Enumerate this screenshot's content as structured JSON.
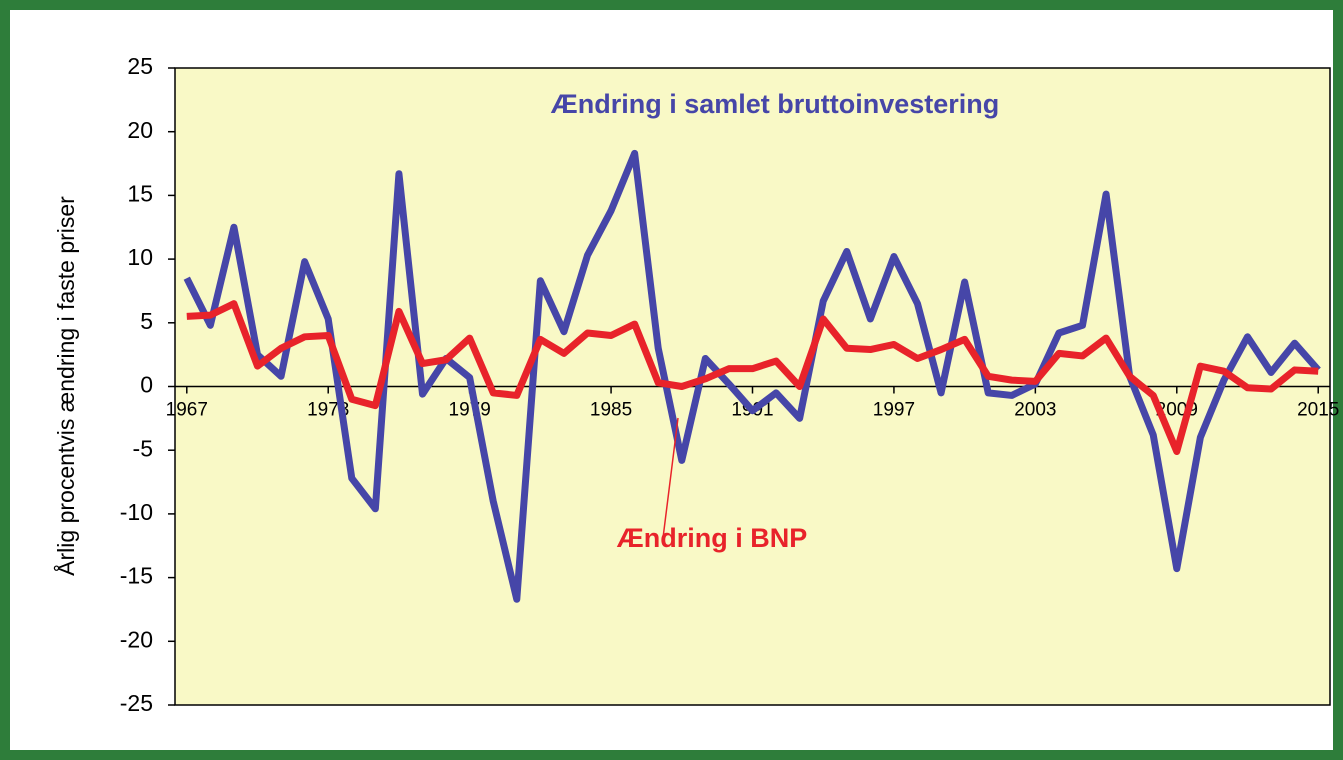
{
  "chart_data": {
    "type": "line",
    "y_label": "Årlig procentvis ændring i faste priser",
    "x": [
      1967,
      1968,
      1969,
      1970,
      1971,
      1972,
      1973,
      1974,
      1975,
      1976,
      1977,
      1978,
      1979,
      1980,
      1981,
      1982,
      1983,
      1984,
      1985,
      1986,
      1987,
      1988,
      1989,
      1990,
      1991,
      1992,
      1993,
      1994,
      1995,
      1996,
      1997,
      1998,
      1999,
      2000,
      2001,
      2002,
      2003,
      2004,
      2005,
      2006,
      2007,
      2008,
      2009,
      2010,
      2011,
      2012,
      2013,
      2014,
      2015
    ],
    "series": [
      {
        "name": "Ændring i samlet bruttoinvestering",
        "color": "#4646a8",
        "values": [
          8.5,
          4.8,
          12.5,
          2.5,
          0.8,
          9.8,
          5.3,
          -7.2,
          -9.6,
          16.7,
          -0.6,
          2.2,
          0.7,
          -9,
          -16.7,
          8.3,
          4.3,
          10.3,
          13.8,
          18.3,
          3,
          -5.8,
          2.2,
          0.2,
          -1.9,
          -0.5,
          -2.5,
          6.7,
          10.6,
          5.3,
          10.2,
          6.5,
          -0.5,
          8.2,
          -0.5,
          -0.7,
          0.2,
          4.2,
          4.8,
          15.1,
          0.8,
          -3.8,
          -14.3,
          -4,
          0.5,
          3.9,
          1.1,
          3.4,
          1.3
        ]
      },
      {
        "name": "Ændring i BNP",
        "color": "#e8232a",
        "values": [
          5.5,
          5.6,
          6.5,
          1.6,
          3,
          3.9,
          4,
          -1,
          -1.5,
          5.9,
          1.8,
          2.1,
          3.8,
          -0.5,
          -0.7,
          3.7,
          2.6,
          4.2,
          4,
          4.9,
          0.3,
          0,
          0.6,
          1.4,
          1.4,
          2,
          0,
          5.3,
          3,
          2.9,
          3.3,
          2.2,
          2.9,
          3.7,
          0.8,
          0.5,
          0.4,
          2.6,
          2.4,
          3.8,
          0.8,
          -0.7,
          -5.1,
          1.6,
          1.2,
          -0.1,
          -0.2,
          1.3,
          1.2
        ]
      }
    ],
    "xlim": [
      1966.5,
      2015.5
    ],
    "xticks": [
      1967,
      1973,
      1979,
      1985,
      1991,
      1997,
      2003,
      2009,
      2015
    ],
    "ylim": [
      -25,
      25
    ],
    "yticks": [
      -25,
      -20,
      -15,
      -10,
      -5,
      0,
      5,
      10,
      15,
      20,
      25
    ],
    "background": "#f9f9c6"
  }
}
